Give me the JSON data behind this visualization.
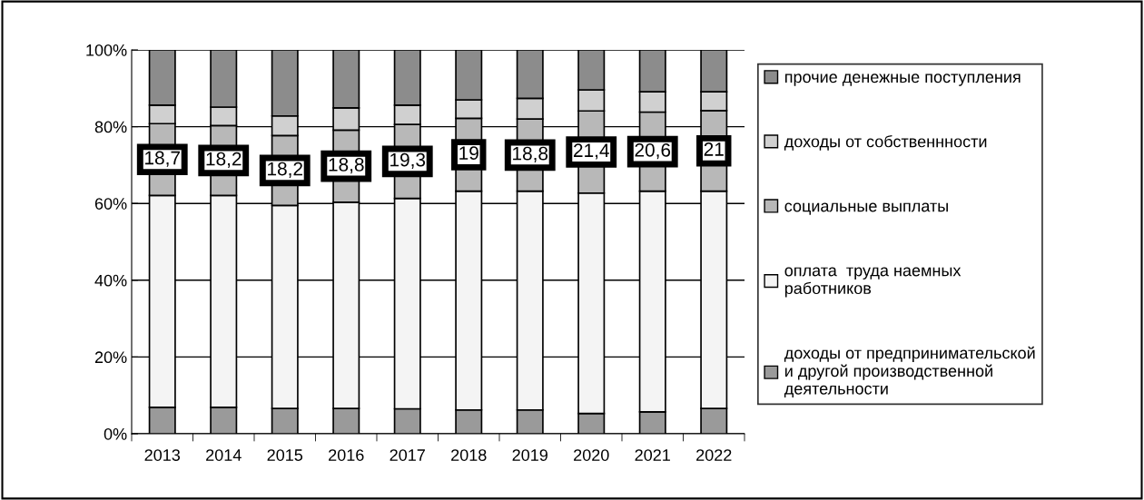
{
  "chart_data": {
    "type": "bar",
    "stacked": true,
    "categories": [
      "2013",
      "2014",
      "2015",
      "2016",
      "2017",
      "2018",
      "2019",
      "2020",
      "2021",
      "2022"
    ],
    "ylim": [
      0,
      100
    ],
    "yticks": [
      {
        "value": 0,
        "label": "0%"
      },
      {
        "value": 20,
        "label": "20%"
      },
      {
        "value": 40,
        "label": "40%"
      },
      {
        "value": 60,
        "label": "60%"
      },
      {
        "value": 80,
        "label": "80%"
      },
      {
        "value": 100,
        "label": "100%"
      }
    ],
    "grid": "y",
    "legend": "right",
    "series": [
      {
        "name": "доходы от предпринимательской\nи другой производственной\nдеятельности",
        "color": "#9a9a9a",
        "values": [
          6.9,
          6.9,
          6.6,
          6.6,
          6.5,
          6.2,
          6.2,
          5.3,
          5.7,
          6.6
        ]
      },
      {
        "name": "оплата  труда наемных\nработников",
        "color": "#f4f4f4",
        "values": [
          55.2,
          55.2,
          52.9,
          53.7,
          54.8,
          57.0,
          57.0,
          57.4,
          57.5,
          56.6
        ]
      },
      {
        "name": "социальные выплаты",
        "color": "#b8b8b8",
        "values": [
          18.7,
          18.2,
          18.2,
          18.8,
          19.3,
          19,
          18.8,
          21.4,
          20.6,
          21
        ],
        "value_labels": [
          "18,7",
          "18,2",
          "18,2",
          "18,8",
          "19,3",
          "19",
          "18,8",
          "21,4",
          "20,6",
          "21"
        ]
      },
      {
        "name": "доходы от собственнности",
        "color": "#d0d0d0",
        "values": [
          4.8,
          4.8,
          5.1,
          5.8,
          5.0,
          4.8,
          5.4,
          5.5,
          5.3,
          4.9
        ]
      },
      {
        "name": "прочие денежные поступления",
        "color": "#8c8c8c",
        "values": [
          14.4,
          14.9,
          17.2,
          15.1,
          14.4,
          13.0,
          12.6,
          10.4,
          10.9,
          10.9
        ]
      }
    ]
  }
}
